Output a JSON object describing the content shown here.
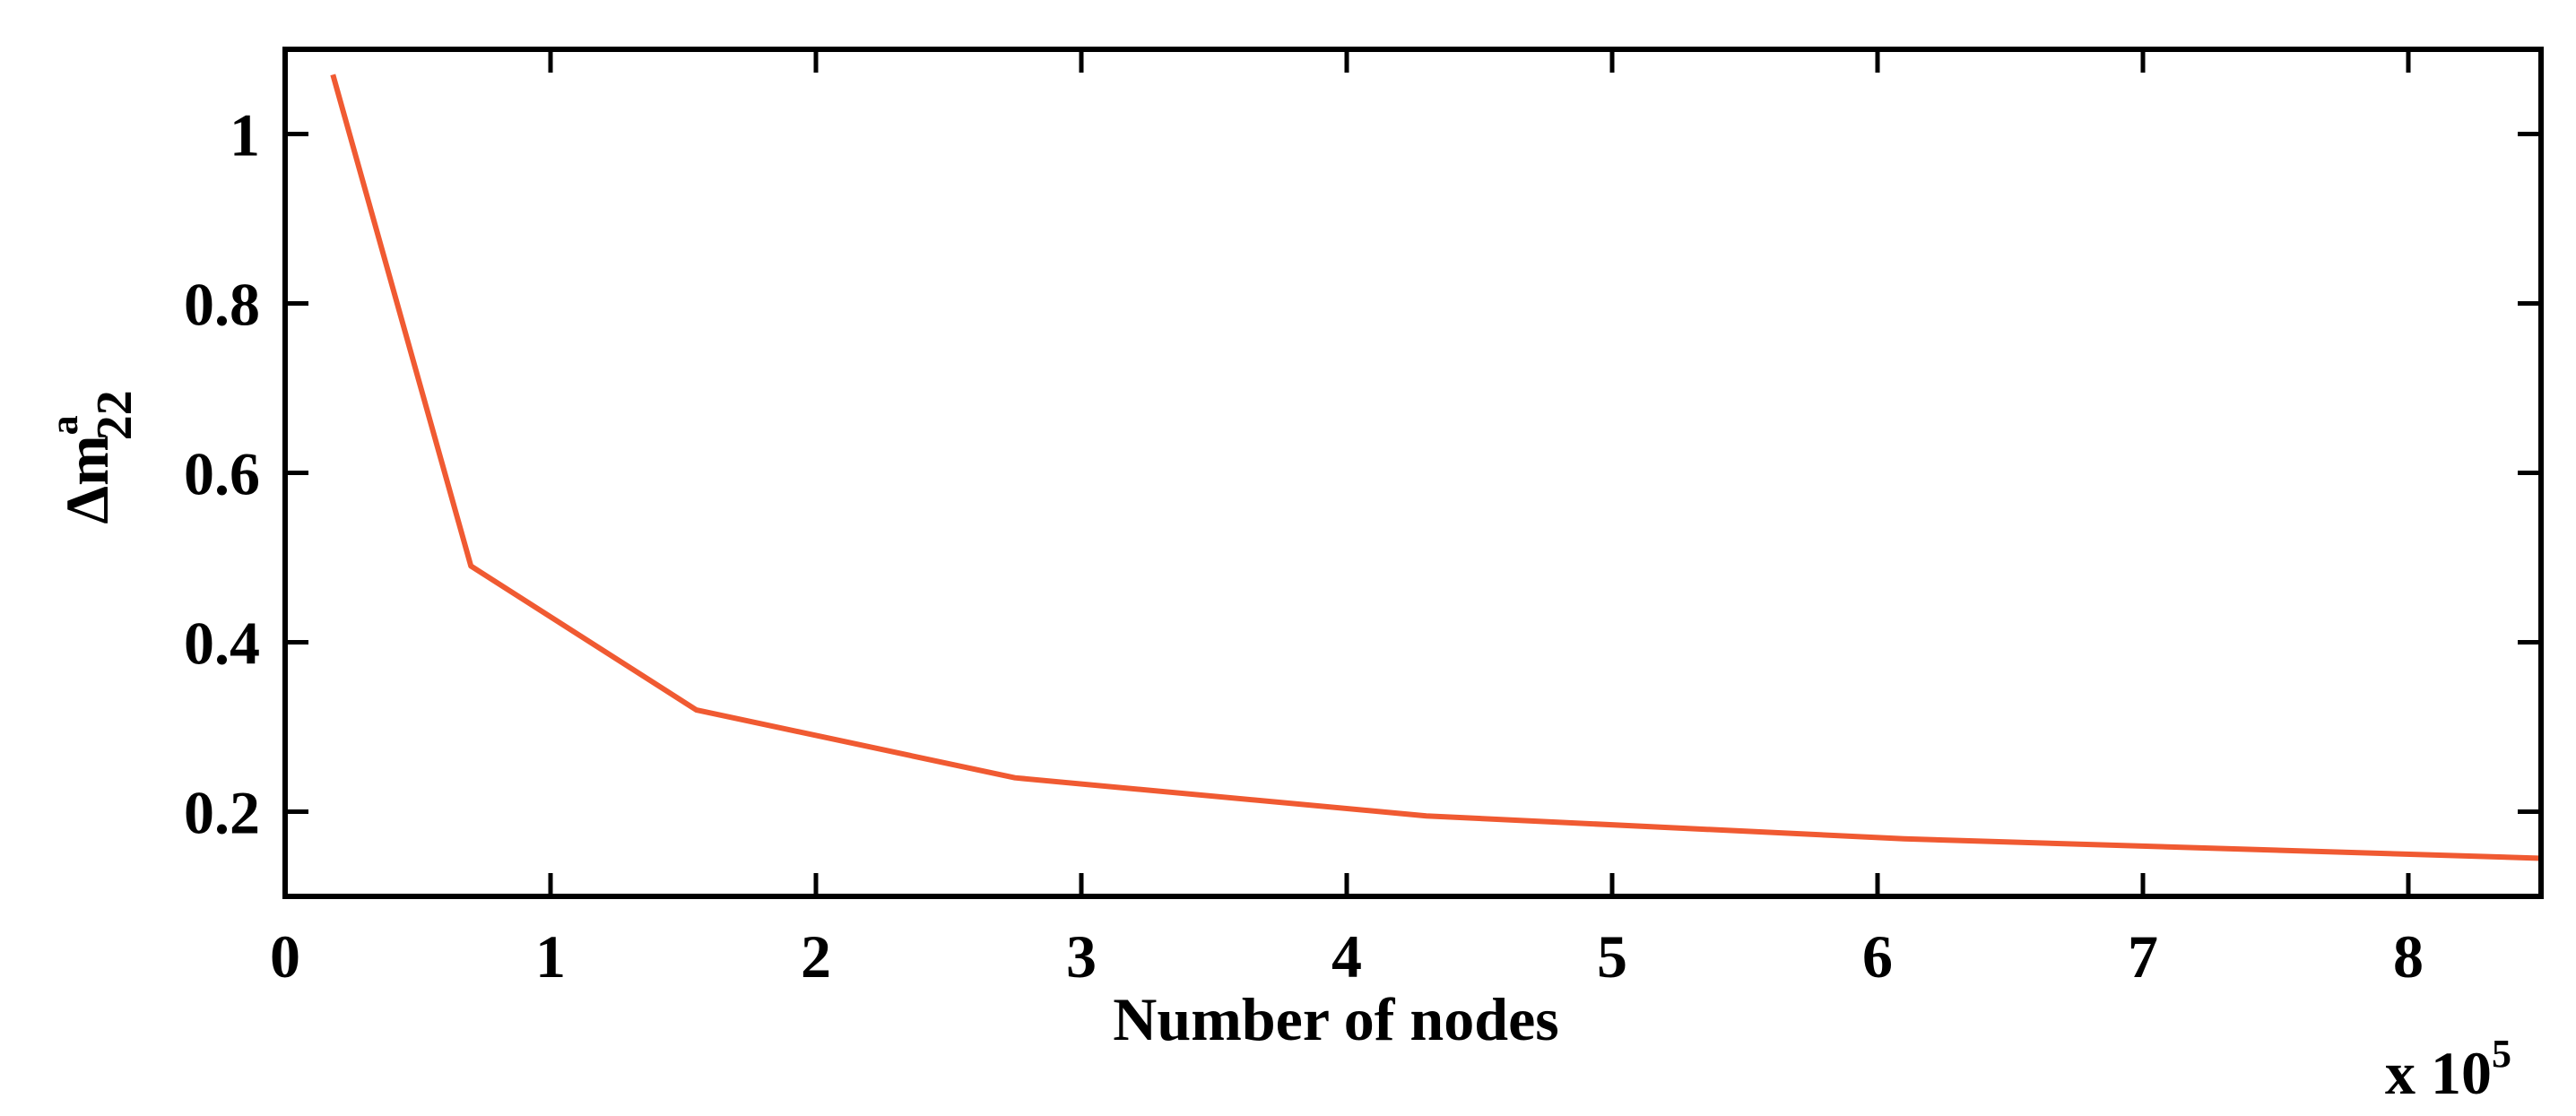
{
  "chart_data": {
    "type": "line",
    "xlabel": "Number of nodes",
    "x_multiplier": "x 10",
    "x_multiplier_exponent": "5",
    "ylabel_base": "Δm",
    "ylabel_sub": "22",
    "ylabel_sup": "a",
    "xlim": [
      0,
      8.5
    ],
    "ylim": [
      0.1,
      1.1
    ],
    "xticks": [
      0,
      1,
      2,
      3,
      4,
      5,
      6,
      7,
      8
    ],
    "xtick_labels": [
      "0",
      "1",
      "2",
      "3",
      "4",
      "5",
      "6",
      "7",
      "8"
    ],
    "yticks": [
      0.2,
      0.4,
      0.6,
      0.8,
      1.0
    ],
    "ytick_labels": [
      "0.2",
      "0.4",
      "0.6",
      "0.8",
      "1"
    ],
    "series": [
      {
        "color": "#f05a32",
        "x": [
          0.18,
          0.7,
          1.55,
          2.75,
          4.3,
          6.1,
          8.5
        ],
        "y": [
          1.07,
          0.49,
          0.32,
          0.24,
          0.195,
          0.168,
          0.145
        ]
      }
    ]
  }
}
